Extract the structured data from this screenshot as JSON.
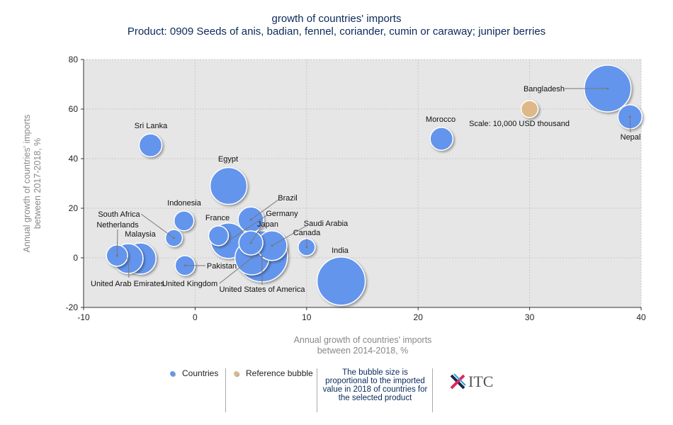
{
  "chart_data": {
    "type": "scatter",
    "subtype": "bubble",
    "title": "growth of countries' imports",
    "subtitle": "Product: 0909 Seeds of anis, badian, fennel, coriander, cumin or caraway; juniper berries",
    "xlabel": [
      "Annual growth of countries' imports",
      "between 2014-2018, %"
    ],
    "ylabel": [
      "Annual growth of countries' imports",
      "between 2017-2018, %"
    ],
    "xlim": [
      -10,
      40
    ],
    "ylim": [
      -20,
      80
    ],
    "xticks": [
      -10,
      0,
      10,
      20,
      30,
      40
    ],
    "yticks": [
      -20,
      0,
      20,
      40,
      60,
      80
    ],
    "grid": true,
    "size_unit": "USD thousand (approx., estimated from bubble area)",
    "series": [
      {
        "name": "Countries",
        "color": "#6495ED",
        "points": [
          {
            "label": "Bangladesh",
            "x": 37.0,
            "y": 68.3,
            "size": 75600
          },
          {
            "label": "Nepal",
            "x": 39.0,
            "y": 56.9,
            "size": 20000
          },
          {
            "label": "Morocco",
            "x": 22.1,
            "y": 48.0,
            "size": 18000
          },
          {
            "label": "Sri Lanka",
            "x": -4.0,
            "y": 45.4,
            "size": 18000
          },
          {
            "label": "Egypt",
            "x": 3.0,
            "y": 29.0,
            "size": 47000
          },
          {
            "label": "Indonesia",
            "x": -1.0,
            "y": 14.9,
            "size": 13600
          },
          {
            "label": "Brazil",
            "x": 5.0,
            "y": 15.4,
            "size": 22500
          },
          {
            "label": "France",
            "x": 2.1,
            "y": 8.9,
            "size": 13600
          },
          {
            "label": "Germany",
            "x": 3.0,
            "y": 6.9,
            "size": 43400
          },
          {
            "label": "Japan",
            "x": 5.0,
            "y": 6.0,
            "size": 20000
          },
          {
            "label": "Saudi Arabia",
            "x": 6.9,
            "y": 4.9,
            "size": 30600
          },
          {
            "label": "Canada",
            "x": 10.0,
            "y": 4.3,
            "size": 10000
          },
          {
            "label": "South Africa",
            "x": -1.9,
            "y": 8.0,
            "size": 10000
          },
          {
            "label": "Netherlands",
            "x": -7.0,
            "y": 0.9,
            "size": 15600
          },
          {
            "label": "Malaysia",
            "x": -4.9,
            "y": -0.3,
            "size": 33600
          },
          {
            "label": "United Arab Emirates",
            "x": -6.0,
            "y": -0.3,
            "size": 30600
          },
          {
            "label": "Pakistan",
            "x": -0.9,
            "y": -3.1,
            "size": 13600
          },
          {
            "label": "United Kingdom",
            "x": 5.1,
            "y": 0.0,
            "size": 40000
          },
          {
            "label": "United States of America",
            "x": 6.0,
            "y": 0.6,
            "size": 90000
          },
          {
            "label": "India",
            "x": 13.1,
            "y": -9.4,
            "size": 80300
          }
        ]
      },
      {
        "name": "Reference bubble",
        "color": "#DEB887",
        "points": [
          {
            "label": "Scale: 10,000 USD thousand",
            "x": 30.0,
            "y": 60.0,
            "size": 10000
          }
        ]
      }
    ]
  },
  "legend": {
    "countries": "Countries",
    "reference": "Reference bubble",
    "note": "The bubble size is proportional to the imported value in 2018 of countries for the selected product"
  },
  "logo": "ITC"
}
